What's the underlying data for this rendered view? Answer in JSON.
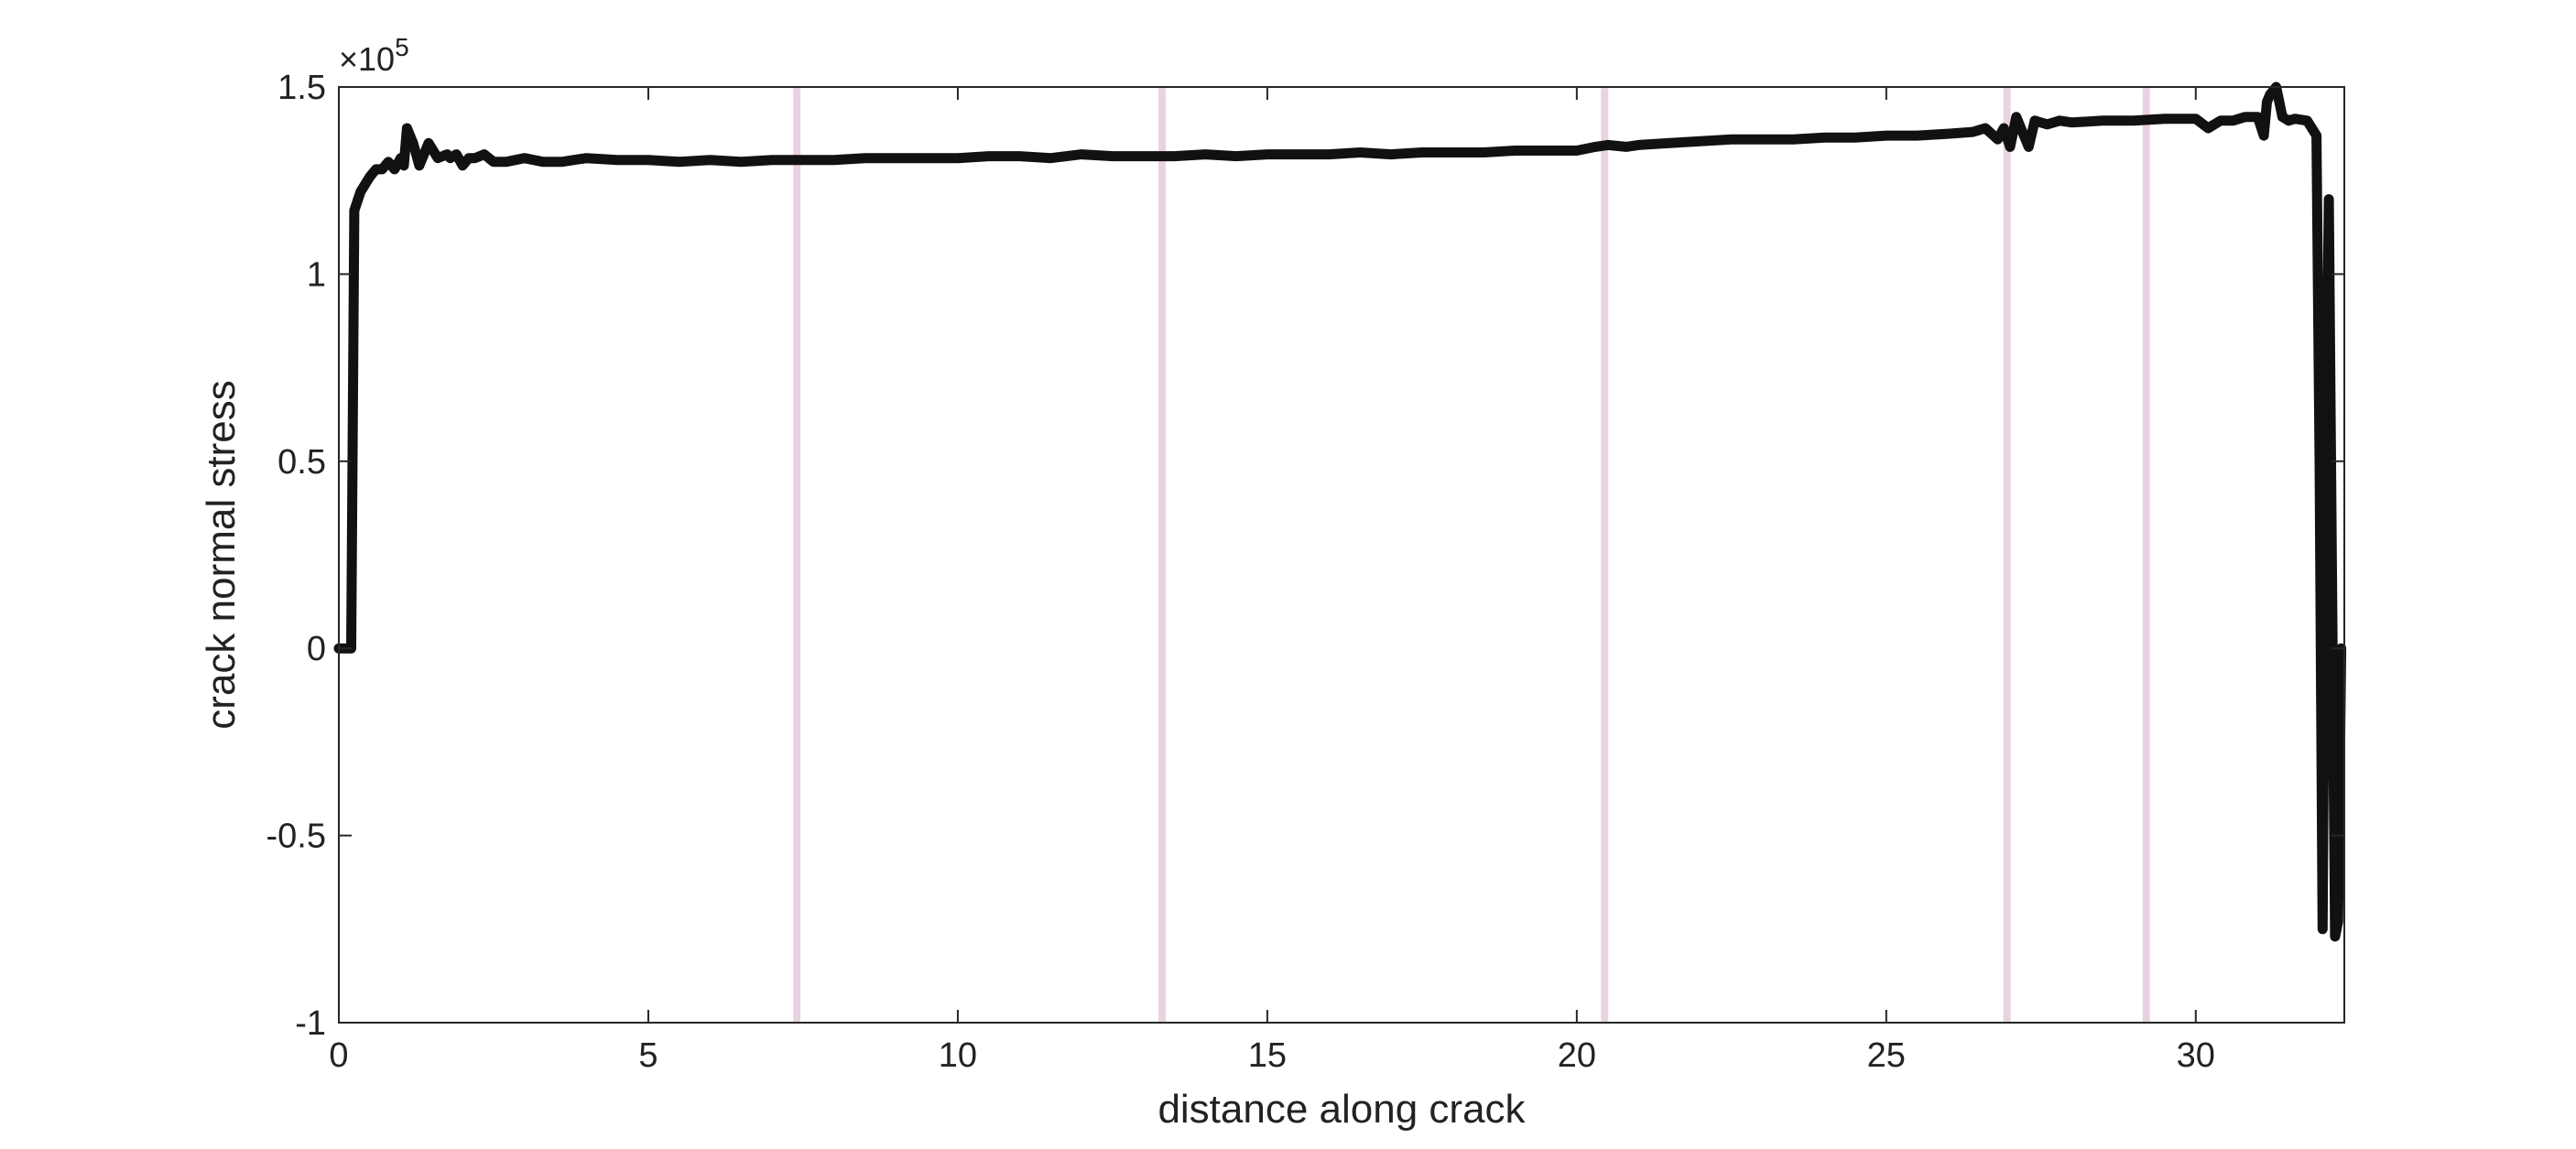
{
  "chart_data": {
    "type": "line",
    "title": "",
    "xlabel": "distance along crack",
    "ylabel": "crack normal stress",
    "y_exponent": "×10",
    "y_exponent_power": "5",
    "xlim": [
      0,
      32.4
    ],
    "ylim": [
      -1,
      1.5
    ],
    "x_ticks": [
      0,
      5,
      10,
      15,
      20,
      25,
      30
    ],
    "x_tick_labels": [
      "0",
      "5",
      "10",
      "15",
      "20",
      "25",
      "30"
    ],
    "y_ticks": [
      -1,
      -0.5,
      0,
      0.5,
      1,
      1.5
    ],
    "y_tick_labels": [
      "-1",
      "-0.5",
      "0",
      "0.5",
      "1",
      "1.5"
    ],
    "grid": false,
    "line_color": "#111111",
    "vertical_line_color": "#e8d3e0",
    "vertical_lines_x": [
      7.4,
      13.3,
      20.45,
      26.95,
      29.2
    ],
    "series": [
      {
        "x": [
          0,
          0.2,
          0.25,
          0.35,
          0.5,
          0.6,
          0.7,
          0.8,
          0.9,
          1.0,
          1.05,
          1.1,
          1.2,
          1.3,
          1.45,
          1.6,
          1.75,
          1.8,
          1.9,
          2.0,
          2.1,
          2.2,
          2.35,
          2.5,
          2.7,
          3.0,
          3.3,
          3.6,
          4.0,
          4.5,
          5.0,
          5.5,
          6.0,
          6.5,
          7.0,
          7.5,
          8.0,
          8.5,
          9.0,
          9.5,
          10.0,
          10.5,
          11.0,
          11.5,
          12.0,
          12.5,
          13.0,
          13.5,
          14.0,
          14.5,
          15.0,
          15.5,
          16.0,
          16.5,
          17.0,
          17.5,
          18.0,
          18.5,
          19.0,
          19.5,
          20.0,
          20.3,
          20.5,
          20.8,
          21.0,
          21.5,
          22.0,
          22.5,
          23.0,
          23.5,
          24.0,
          24.5,
          25.0,
          25.5,
          26.0,
          26.4,
          26.6,
          26.8,
          26.9,
          27.0,
          27.1,
          27.2,
          27.3,
          27.4,
          27.6,
          27.8,
          28.0,
          28.5,
          29.0,
          29.5,
          30.0,
          30.2,
          30.4,
          30.6,
          30.8,
          31.0,
          31.1,
          31.15,
          31.2,
          31.3,
          31.4,
          31.5,
          31.6,
          31.8,
          31.95,
          32.0,
          32.05,
          32.1,
          32.15,
          32.2,
          32.25,
          32.3,
          32.35
        ],
        "y": [
          0,
          0,
          1.17,
          1.22,
          1.26,
          1.28,
          1.28,
          1.3,
          1.28,
          1.31,
          1.29,
          1.39,
          1.35,
          1.29,
          1.35,
          1.31,
          1.32,
          1.31,
          1.32,
          1.29,
          1.31,
          1.31,
          1.32,
          1.3,
          1.3,
          1.31,
          1.3,
          1.3,
          1.31,
          1.305,
          1.305,
          1.3,
          1.305,
          1.3,
          1.305,
          1.305,
          1.305,
          1.31,
          1.31,
          1.31,
          1.31,
          1.315,
          1.315,
          1.31,
          1.32,
          1.315,
          1.315,
          1.315,
          1.32,
          1.315,
          1.32,
          1.32,
          1.32,
          1.325,
          1.32,
          1.325,
          1.325,
          1.325,
          1.33,
          1.33,
          1.33,
          1.34,
          1.345,
          1.34,
          1.345,
          1.35,
          1.355,
          1.36,
          1.36,
          1.36,
          1.365,
          1.365,
          1.37,
          1.37,
          1.375,
          1.38,
          1.39,
          1.36,
          1.39,
          1.34,
          1.42,
          1.38,
          1.34,
          1.41,
          1.4,
          1.41,
          1.405,
          1.41,
          1.41,
          1.415,
          1.415,
          1.39,
          1.41,
          1.41,
          1.42,
          1.42,
          1.37,
          1.46,
          1.48,
          1.5,
          1.42,
          1.41,
          1.415,
          1.41,
          1.37,
          0.5,
          -0.75,
          0.5,
          1.2,
          0.2,
          -0.77,
          -0.73,
          0
        ]
      }
    ]
  }
}
